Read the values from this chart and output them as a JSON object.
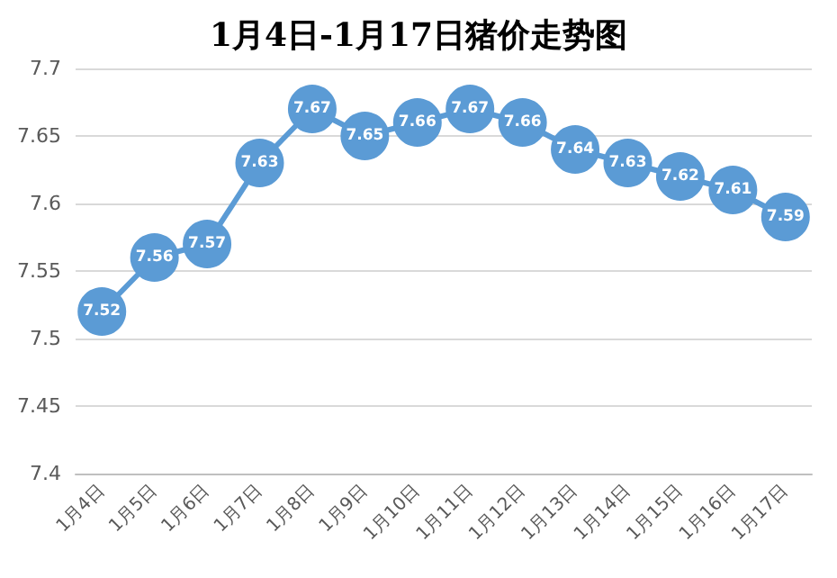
{
  "chart_data": {
    "type": "line",
    "title": "1月4日-1月17日猪价走势图",
    "categories": [
      "1月4日",
      "1月5日",
      "1月6日",
      "1月7日",
      "1月8日",
      "1月9日",
      "1月10日",
      "1月11日",
      "1月12日",
      "1月13日",
      "1月14日",
      "1月15日",
      "1月16日",
      "1月17日"
    ],
    "series": [
      {
        "color": "#5b9bd5",
        "values": [
          7.52,
          7.56,
          7.57,
          7.63,
          7.67,
          7.65,
          7.66,
          7.67,
          7.66,
          7.64,
          7.63,
          7.62,
          7.61,
          7.59
        ]
      }
    ],
    "ylim": [
      7.4,
      7.7
    ],
    "yticks": [
      7.4,
      7.45,
      7.5,
      7.55,
      7.6,
      7.65,
      7.7
    ],
    "grid": "y",
    "marker": "circle",
    "line_style": "solid",
    "data_labels": true
  }
}
